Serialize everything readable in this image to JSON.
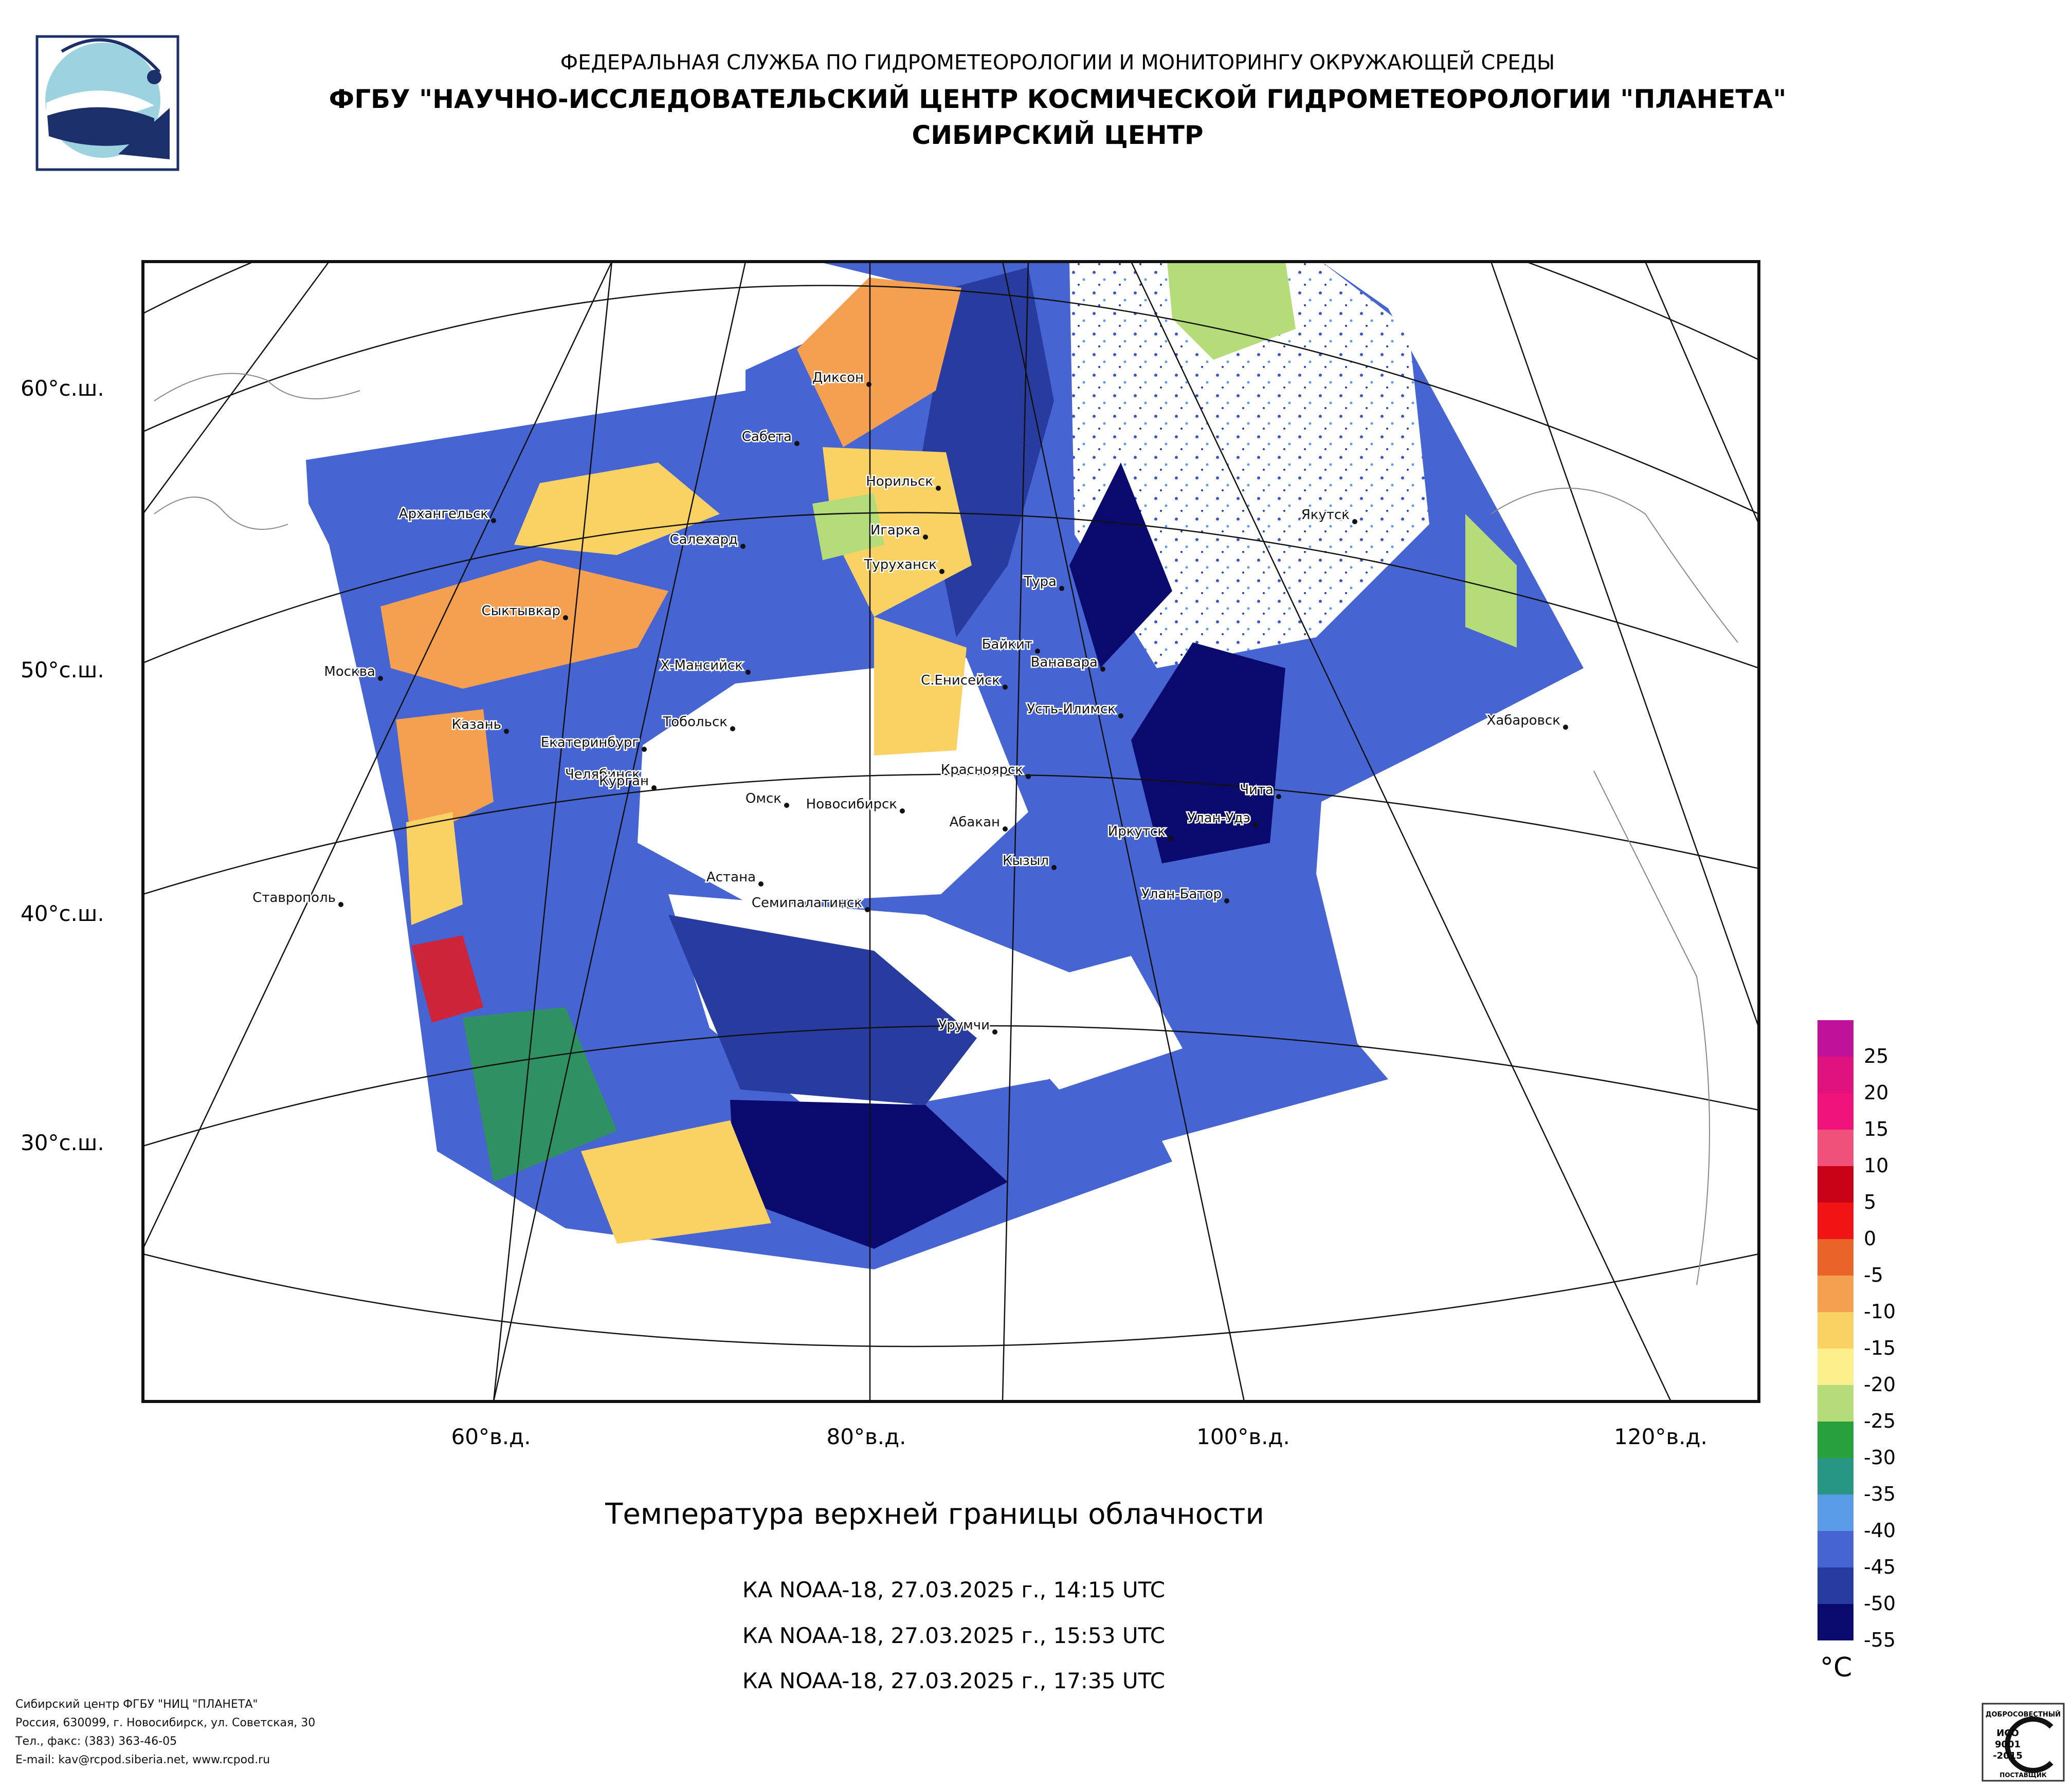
{
  "header": {
    "line1": "ФЕДЕРАЛЬНАЯ СЛУЖБА ПО ГИДРОМЕТЕОРОЛОГИИ И МОНИТОРИНГУ ОКРУЖАЮЩЕЙ СРЕДЫ",
    "line2": "ФГБУ \"НАУЧНО-ИССЛЕДОВАТЕЛЬСКИЙ ЦЕНТР КОСМИЧЕСКОЙ ГИДРОМЕТЕОРОЛОГИИ \"ПЛАНЕТА\"",
    "line3": "СИБИРСКИЙ ЦЕНТР"
  },
  "map": {
    "lat_labels": [
      "60°с.ш.",
      "50°с.ш.",
      "40°с.ш.",
      "30°с.ш."
    ],
    "lon_labels": [
      "60°в.д.",
      "80°в.д.",
      "100°в.д.",
      "120°в.д."
    ],
    "cities": [
      "Диксон",
      "Сабета",
      "Норильск",
      "Игарка",
      "Туруханск",
      "Салехард",
      "Архангельск",
      "Сыктывкар",
      "Тура",
      "Якутск",
      "Байкит",
      "Ванавара",
      "С.Енисейск",
      "Усть-Илимск",
      "Х-Мансийск",
      "Москва",
      "Казань",
      "Екатеринбург",
      "Тобольск",
      "Челябинск",
      "Курган",
      "Омск",
      "Новосибирск",
      "Красноярск",
      "Абакан",
      "Кызыл",
      "Иркутск",
      "Улан-Удэ",
      "Чита",
      "Хабаровск",
      "Улан-Батор",
      "Астана",
      "Семипалатинск",
      "Ставрополь",
      "Урумчи"
    ]
  },
  "product_title": "Температура верхней границы облачности",
  "passes": [
    "КА NOAA-18, 27.03.2025 г., 14:15 UTC",
    "КА NOAA-18, 27.03.2025 г., 15:53 UTC",
    "КА NOAA-18, 27.03.2025 г., 17:35 UTC"
  ],
  "legend": {
    "unit": "°C",
    "labels": [
      "25",
      "20",
      "15",
      "10",
      "5",
      "0",
      "-5",
      "-10",
      "-15",
      "-20",
      "-25",
      "-30",
      "-35",
      "-40",
      "-45",
      "-50",
      "-55"
    ],
    "colors": [
      "#c0119b",
      "#e0127e",
      "#f0127a",
      "#f0507a",
      "#c80018",
      "#f01414",
      "#e86428",
      "#f4a050",
      "#fad264",
      "#fcf08c",
      "#b4dc78",
      "#28a03c",
      "#289682",
      "#5a9be6",
      "#4664d2",
      "#283ca0",
      "#0a0a6e"
    ]
  },
  "footer": {
    "line1": "Сибирский центр ФГБУ \"НИЦ \"ПЛАНЕТА\"",
    "line2": "Россия, 630099, г. Новосибирск, ул. Советская, 30",
    "line3": "Тел., факс: (383) 363-46-05",
    "line4": "E-mail: kav@rcpod.siberia.net, www.rcpod.ru"
  },
  "iso_badge": {
    "top": "ДОБРОСОВЕСТНЫЙ",
    "l1": "ИСО",
    "l2": "9001",
    "l3": "-2015",
    "bottom": "ПОСТАВЩИК"
  }
}
